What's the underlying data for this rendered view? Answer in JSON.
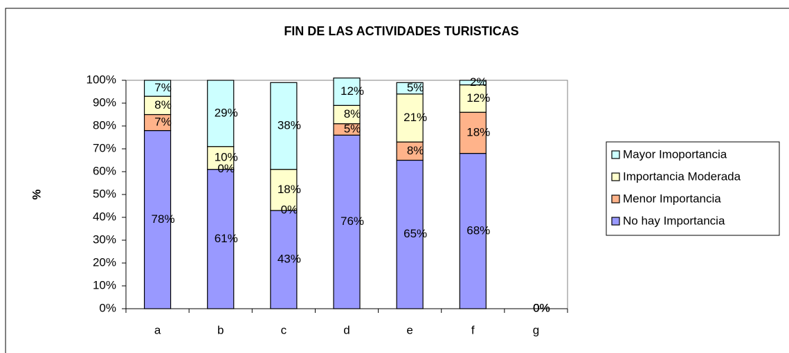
{
  "chart_data": {
    "type": "stacked-bar",
    "title": "FIN DE LAS ACTIVIDADES TURISTICAS",
    "y_label": "%",
    "categories": [
      "a",
      "b",
      "c",
      "d",
      "e",
      "f",
      "g"
    ],
    "series": [
      {
        "name": "No hay Importancia",
        "color": "#9999ff",
        "values": [
          78,
          61,
          43,
          76,
          65,
          68,
          0
        ],
        "value_labels": [
          "78%",
          "61%",
          "43%",
          "76%",
          "65%",
          "68%",
          "0%"
        ]
      },
      {
        "name": "Menor Importancia",
        "color": "#ffb38a",
        "values": [
          7,
          0,
          0,
          5,
          8,
          18,
          0
        ],
        "value_labels": [
          "7%",
          "0%",
          "0%",
          "5%",
          "8%",
          "18%",
          "0%"
        ]
      },
      {
        "name": "Importancia Moderada",
        "color": "#ffffcc",
        "values": [
          8,
          10,
          18,
          8,
          21,
          12,
          0
        ],
        "value_labels": [
          "8%",
          "10%",
          "18%",
          "8%",
          "21%",
          "12%",
          "0%"
        ]
      },
      {
        "name": "Mayor Imoportancia",
        "color": "#ccffff",
        "values": [
          7,
          29,
          38,
          12,
          5,
          2,
          0
        ],
        "value_labels": [
          "7%",
          "29%",
          "38%",
          "12%",
          "5%",
          "2%",
          "0%"
        ]
      }
    ],
    "ylim": [
      0,
      100
    ],
    "yticks": [
      {
        "value": 0,
        "label": "0%"
      },
      {
        "value": 10,
        "label": "10%"
      },
      {
        "value": 20,
        "label": "20%"
      },
      {
        "value": 30,
        "label": "30%"
      },
      {
        "value": 40,
        "label": "40%"
      },
      {
        "value": 50,
        "label": "50%"
      },
      {
        "value": 60,
        "label": "60%"
      },
      {
        "value": 70,
        "label": "70%"
      },
      {
        "value": 80,
        "label": "80%"
      },
      {
        "value": 90,
        "label": "90%"
      },
      {
        "value": 100,
        "label": "100%"
      }
    ],
    "legend": "right"
  }
}
